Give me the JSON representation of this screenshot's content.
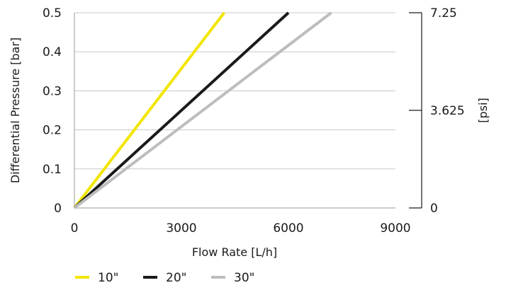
{
  "chart_data": {
    "type": "line",
    "title": "",
    "xlabel": "Flow Rate [L/h]",
    "ylabel": "Differential Pressure [bar]",
    "ylabel_right": "[psi]",
    "xlim": [
      0,
      9000
    ],
    "ylim": [
      0,
      0.5
    ],
    "ylim_right": [
      0,
      7.25
    ],
    "x_ticks": [
      "0",
      "3000",
      "6000",
      "9000"
    ],
    "y_ticks": [
      "0",
      "0.1",
      "0.2",
      "0.3",
      "0.4",
      "0.5"
    ],
    "y_ticks_right": [
      "0",
      "3.625",
      "7.25"
    ],
    "grid": true,
    "legend_position": "bottom",
    "series": [
      {
        "name": "10\"",
        "color": "#f2e600",
        "x": [
          0,
          4200
        ],
        "y": [
          0,
          0.5
        ]
      },
      {
        "name": "20\"",
        "color": "#1a1a1a",
        "x": [
          0,
          6000
        ],
        "y": [
          0,
          0.5
        ]
      },
      {
        "name": "30\"",
        "color": "#bdbdbd",
        "x": [
          0,
          7200
        ],
        "y": [
          0,
          0.5
        ]
      }
    ]
  }
}
